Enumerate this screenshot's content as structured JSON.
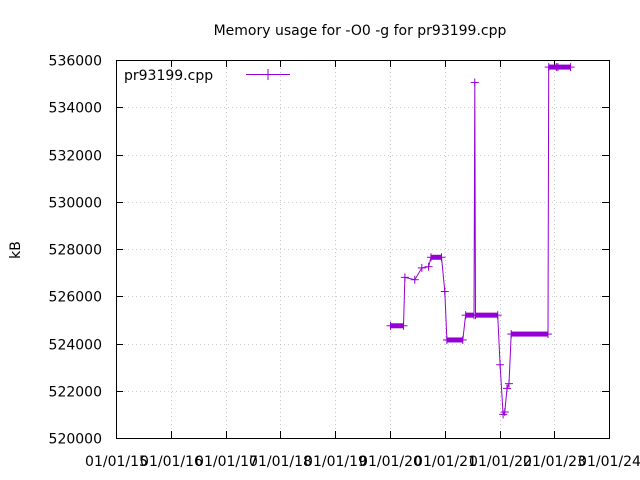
{
  "chart_data": {
    "type": "line",
    "title": "Memory usage for -O0 -g for pr93199.cpp",
    "xlabel": "",
    "ylabel": "kB",
    "x_ticks": [
      "01/01/15",
      "01/01/16",
      "01/01/17",
      "01/01/18",
      "01/01/19",
      "01/01/20",
      "01/01/21",
      "01/01/22",
      "01/01/23",
      "01/01/24"
    ],
    "xlim": [
      "2015-01-01",
      "2024-01-01"
    ],
    "y_ticks": [
      "520000",
      "522000",
      "524000",
      "526000",
      "528000",
      "530000",
      "532000",
      "534000",
      "536000"
    ],
    "ylim": [
      520000,
      536000
    ],
    "grid": true,
    "legend": "top-left",
    "series": [
      {
        "name": "pr93199.cpp",
        "color": "#9400d3",
        "points": [
          [
            "2020-01-05",
            524750
          ],
          [
            "2020-04-01",
            524750
          ],
          [
            "2020-04-10",
            526800
          ],
          [
            "2020-06-15",
            526700
          ],
          [
            "2020-08-01",
            527200
          ],
          [
            "2020-09-15",
            527250
          ],
          [
            "2020-10-01",
            527650
          ],
          [
            "2020-12-10",
            527650
          ],
          [
            "2021-01-01",
            526200
          ],
          [
            "2021-01-15",
            524150
          ],
          [
            "2021-05-01",
            524150
          ],
          [
            "2021-05-20",
            525200
          ],
          [
            "2021-07-15",
            525200
          ],
          [
            "2021-07-20",
            535050
          ],
          [
            "2021-07-25",
            525200
          ],
          [
            "2021-12-20",
            525200
          ],
          [
            "2022-01-05",
            523100
          ],
          [
            "2022-01-25",
            521000
          ],
          [
            "2022-02-05",
            521100
          ],
          [
            "2022-02-20",
            522100
          ],
          [
            "2022-03-05",
            522300
          ],
          [
            "2022-03-20",
            524400
          ],
          [
            "2022-11-20",
            524400
          ],
          [
            "2022-11-25",
            535700
          ],
          [
            "2023-01-15",
            535700
          ],
          [
            "2023-01-25",
            535700
          ],
          [
            "2023-04-20",
            535700
          ]
        ]
      }
    ]
  }
}
